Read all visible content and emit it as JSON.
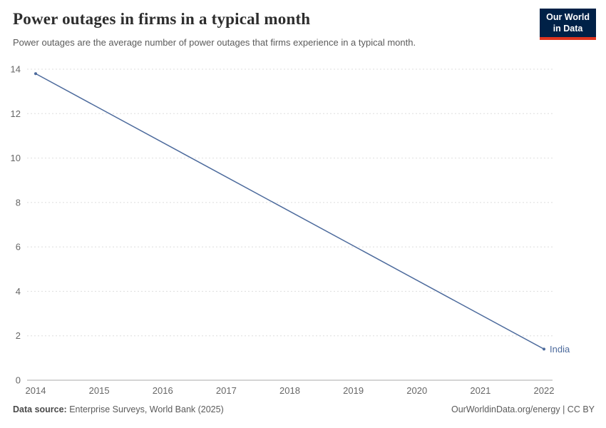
{
  "header": {
    "title": "Power outages in firms in a typical month",
    "subtitle": "Power outages are the average number of power outages that firms experience in a typical month.",
    "logo": {
      "line1": "Our World",
      "line2": "in Data",
      "bg_color": "#002147",
      "accent_color": "#e0351f"
    }
  },
  "chart_data": {
    "type": "line",
    "title": "Power outages in firms in a typical month",
    "xlabel": "",
    "ylabel": "",
    "xlim": [
      2014,
      2022
    ],
    "ylim": [
      0,
      14
    ],
    "x_ticks": [
      2014,
      2015,
      2016,
      2017,
      2018,
      2019,
      2020,
      2021,
      2022
    ],
    "y_ticks": [
      0,
      2,
      4,
      6,
      8,
      10,
      12,
      14
    ],
    "grid": "horizontal-dashed",
    "legend_position": "end-of-line-label",
    "series": [
      {
        "name": "India",
        "color": "#4c6a9c",
        "points": [
          {
            "x": 2014,
            "y": 13.8
          },
          {
            "x": 2022,
            "y": 1.4
          }
        ]
      }
    ]
  },
  "footer": {
    "source_label": "Data source:",
    "source_text": "Enterprise Surveys, World Bank (2025)",
    "credit": "OurWorldinData.org/energy | CC BY"
  },
  "colors": {
    "gridline": "#dedede",
    "axis_line": "#a8a8a8",
    "tick_label": "#666666"
  }
}
